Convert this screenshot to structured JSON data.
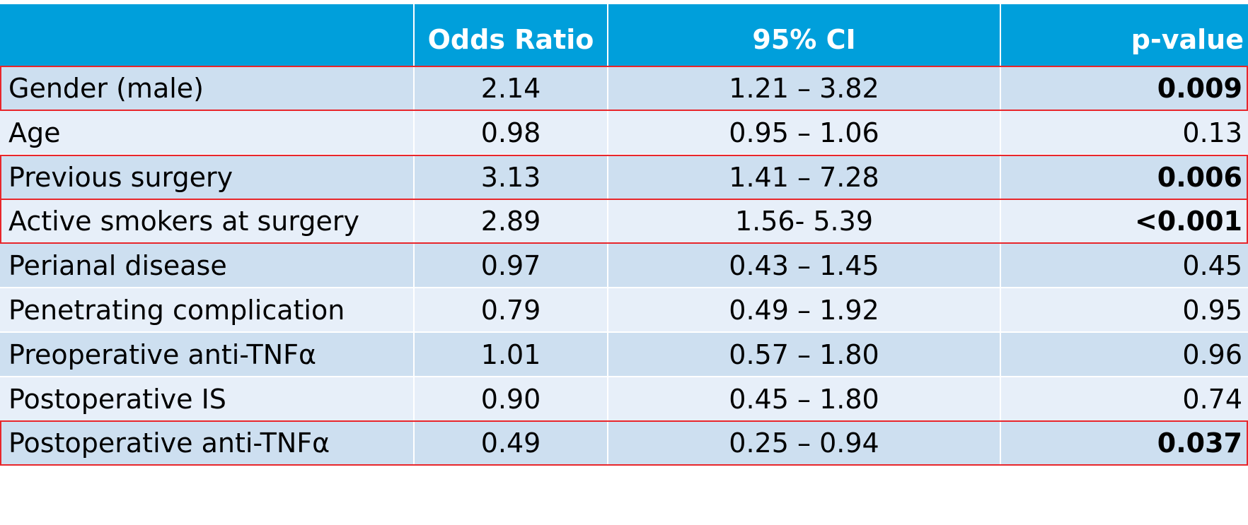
{
  "table": {
    "headers": {
      "variable": "",
      "odds_ratio": "Odds Ratio",
      "ci": "95% CI",
      "p_value": "p-value"
    },
    "rows": [
      {
        "variable": "Gender (male)",
        "odds_ratio": "2.14",
        "ci": "1.21 – 3.82",
        "p_value": "0.009",
        "significant": true,
        "highlighted": true
      },
      {
        "variable": "Age",
        "odds_ratio": "0.98",
        "ci": "0.95 – 1.06",
        "p_value": "0.13",
        "significant": false,
        "highlighted": false
      },
      {
        "variable": "Previous surgery",
        "odds_ratio": "3.13",
        "ci": "1.41 – 7.28",
        "p_value": "0.006",
        "significant": true,
        "highlighted": true
      },
      {
        "variable": "Active smokers at surgery",
        "odds_ratio": "2.89",
        "ci": "1.56- 5.39",
        "p_value": "<0.001",
        "significant": true,
        "highlighted": true
      },
      {
        "variable": "Perianal disease",
        "odds_ratio": "0.97",
        "ci": "0.43 – 1.45",
        "p_value": "0.45",
        "significant": false,
        "highlighted": false
      },
      {
        "variable": "Penetrating complication",
        "odds_ratio": "0.79",
        "ci": "0.49 – 1.92",
        "p_value": "0.95",
        "significant": false,
        "highlighted": false
      },
      {
        "variable": "Preoperative anti-TNFα",
        "odds_ratio": "1.01",
        "ci": "0.57 – 1.80",
        "p_value": "0.96",
        "significant": false,
        "highlighted": false
      },
      {
        "variable": "Postoperative IS",
        "odds_ratio": "0.90",
        "ci": "0.45 – 1.80",
        "p_value": "0.74",
        "significant": false,
        "highlighted": false
      },
      {
        "variable": "Postoperative anti-TNFα",
        "odds_ratio": "0.49",
        "ci": "0.25 – 0.94",
        "p_value": "0.037",
        "significant": true,
        "highlighted": true
      }
    ]
  },
  "colors": {
    "header_bg": "#009fdb",
    "row_dark": "#cddff0",
    "row_light": "#e7eff9",
    "highlight_border": "#e8262b"
  }
}
